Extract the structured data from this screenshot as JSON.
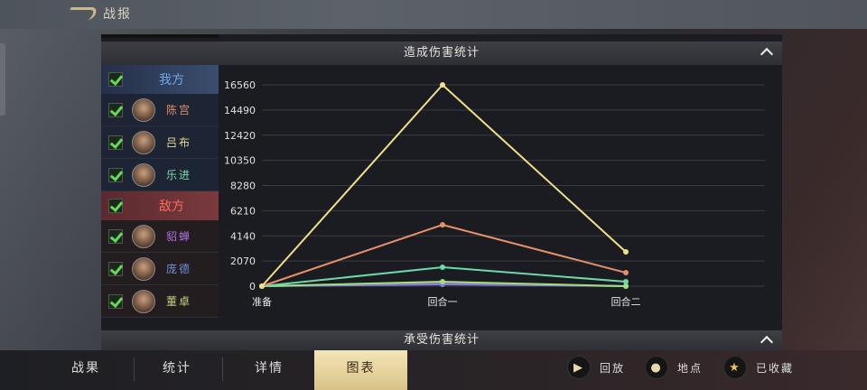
{
  "header": {
    "title": "战报"
  },
  "section1": {
    "title": "造成伤害统计"
  },
  "section2": {
    "title": "承受伤害统计"
  },
  "legend": {
    "our": {
      "label": "我方",
      "members": [
        {
          "name": "陈宫",
          "color": "#e0906a"
        },
        {
          "name": "吕布",
          "color": "#e6d890"
        },
        {
          "name": "乐进",
          "color": "#7ed8b0"
        }
      ]
    },
    "enemy": {
      "label": "敌方",
      "members": [
        {
          "name": "貂蝉",
          "color": "#b070e0"
        },
        {
          "name": "庞德",
          "color": "#7090e0"
        },
        {
          "name": "董卓",
          "color": "#c8d880"
        }
      ]
    }
  },
  "chart_data": {
    "type": "line",
    "categories": [
      "准备",
      "回合一",
      "回合二"
    ],
    "yticks": [
      0,
      2070,
      4140,
      6210,
      8280,
      10350,
      12420,
      14490,
      16560
    ],
    "ylim": [
      0,
      16560
    ],
    "grid": true,
    "series": [
      {
        "name": "吕布",
        "color": "#f0e08a",
        "values": [
          0,
          16560,
          2820
        ]
      },
      {
        "name": "陈宫",
        "color": "#e8906a",
        "values": [
          0,
          5050,
          1110
        ]
      },
      {
        "name": "乐进",
        "color": "#6ed8a8",
        "values": [
          0,
          1560,
          370
        ]
      },
      {
        "name": "董卓",
        "color": "#9ee07a",
        "values": [
          0,
          370,
          0
        ]
      },
      {
        "name": "貂蝉",
        "color": "#9a70d8",
        "values": [
          0,
          220,
          0
        ]
      },
      {
        "name": "庞德",
        "color": "#7090e0",
        "values": [
          0,
          150,
          0
        ]
      }
    ]
  },
  "tabs": [
    {
      "label": "战果"
    },
    {
      "label": "统计"
    },
    {
      "label": "详情"
    },
    {
      "label": "图表",
      "active": true
    }
  ],
  "actions": [
    {
      "label": "回放",
      "icon": "play-icon"
    },
    {
      "label": "地点",
      "icon": "location-pin-icon"
    },
    {
      "label": "已收藏",
      "icon": "star-icon"
    }
  ]
}
